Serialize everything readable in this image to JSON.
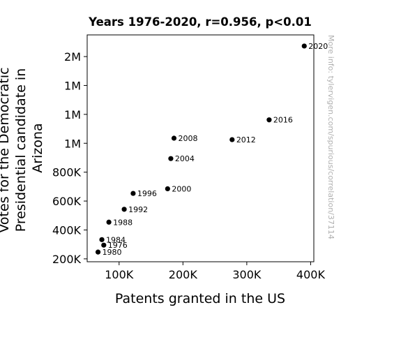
{
  "chart_data": {
    "type": "scatter",
    "title": "Years 1976-2020, r=0.956, p<0.01",
    "xlabel": "Patents granted in the US",
    "ylabel_lines": [
      "Votes for the Democratic",
      "Presidential candidate in",
      "Arizona"
    ],
    "x_ticks": [
      {
        "value": 100000,
        "label": "100K"
      },
      {
        "value": 200000,
        "label": "200K"
      },
      {
        "value": 300000,
        "label": "300K"
      },
      {
        "value": 400000,
        "label": "400K"
      }
    ],
    "y_ticks": [
      {
        "value": 200000,
        "label": "200K"
      },
      {
        "value": 400000,
        "label": "400K"
      },
      {
        "value": 600000,
        "label": "600K"
      },
      {
        "value": 800000,
        "label": "800K"
      },
      {
        "value": 1000000,
        "label": "1M"
      },
      {
        "value": 1200000,
        "label": "1M"
      },
      {
        "value": 1400000,
        "label": "1M"
      },
      {
        "value": 1600000,
        "label": "2M"
      }
    ],
    "xlim": [
      50000,
      405000
    ],
    "ylim": [
      180000,
      1750000
    ],
    "points": [
      {
        "label": "1976",
        "x": 76000,
        "y": 295000
      },
      {
        "label": "1980",
        "x": 67000,
        "y": 247000
      },
      {
        "label": "1984",
        "x": 73000,
        "y": 333000
      },
      {
        "label": "1988",
        "x": 84000,
        "y": 454000
      },
      {
        "label": "1992",
        "x": 108000,
        "y": 543000
      },
      {
        "label": "1996",
        "x": 122000,
        "y": 653000
      },
      {
        "label": "2000",
        "x": 176000,
        "y": 685000
      },
      {
        "label": "2004",
        "x": 181000,
        "y": 894000
      },
      {
        "label": "2008",
        "x": 186000,
        "y": 1035000
      },
      {
        "label": "2012",
        "x": 277000,
        "y": 1025000
      },
      {
        "label": "2016",
        "x": 335000,
        "y": 1162000
      },
      {
        "label": "2020",
        "x": 390000,
        "y": 1673000
      }
    ],
    "grid": false,
    "watermark": "More info: tylervigen.com/spurious/correlation/37114"
  }
}
